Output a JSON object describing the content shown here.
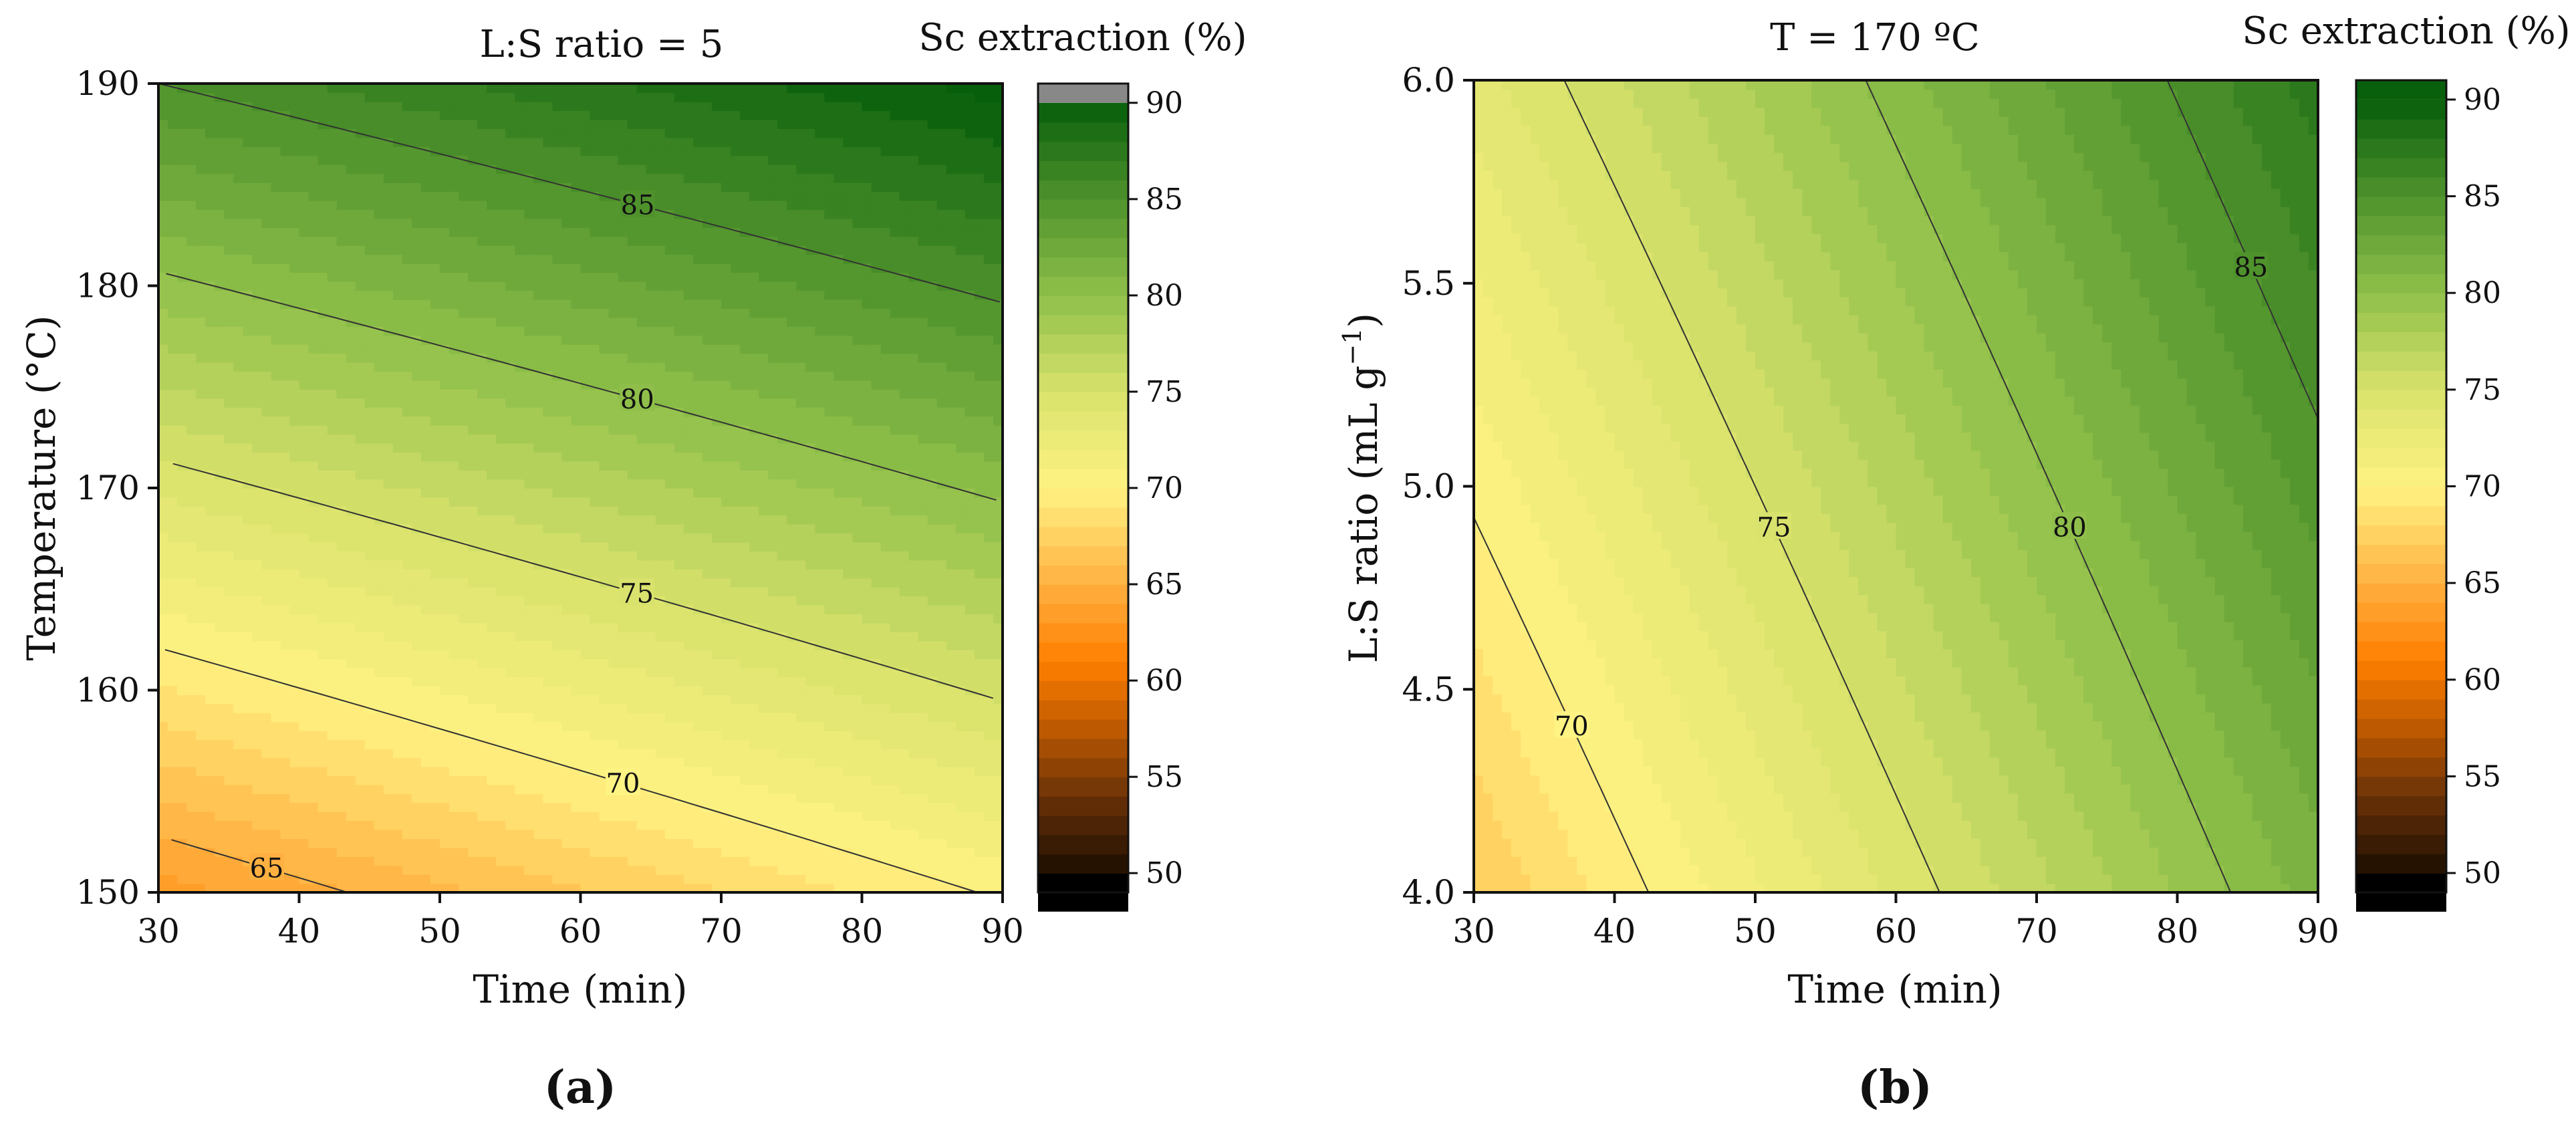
{
  "chart_data": [
    {
      "panel": "(a)",
      "type": "contour",
      "title": "L:S ratio = 5",
      "xlabel": "Time (min)",
      "ylabel": "Temperature (°C)",
      "xlim": [
        30,
        90
      ],
      "ylim": [
        150,
        190
      ],
      "xticks": [
        "30",
        "40",
        "50",
        "60",
        "70",
        "80",
        "90"
      ],
      "yticks": [
        "150",
        "160",
        "170",
        "180",
        "190"
      ],
      "colorbar_title": "Sc extraction (%)",
      "colorbar_ticks": [
        "50",
        "55",
        "60",
        "65",
        "70",
        "75",
        "80",
        "85",
        "90"
      ],
      "contour_labels": [
        "65",
        "70",
        "75",
        "80",
        "85"
      ],
      "z_corners": {
        "x30_y150": 63.5,
        "x90_y150": 70.2,
        "x30_y190": 85.0,
        "x90_y190": 90.5
      }
    },
    {
      "panel": "(b)",
      "type": "contour",
      "title": "T = 170 ºC",
      "xlabel": "Time (min)",
      "ylabel": "L:S ratio (mL g",
      "ylabel_sup": "−1",
      "ylabel_end": ")",
      "xlim": [
        30,
        90
      ],
      "ylim": [
        4.0,
        6.0
      ],
      "xticks": [
        "30",
        "40",
        "50",
        "60",
        "70",
        "80",
        "90"
      ],
      "yticks": [
        "4.0",
        "4.5",
        "5.0",
        "5.5",
        "6.0"
      ],
      "colorbar_title": "Sc extraction (%)",
      "colorbar_ticks": [
        "50",
        "55",
        "60",
        "65",
        "70",
        "75",
        "80",
        "85",
        "90"
      ],
      "contour_labels": [
        "70",
        "75",
        "80",
        "85"
      ],
      "z_corners": {
        "x30_y4": 67.0,
        "x90_y4": 81.5,
        "x30_y6": 73.5,
        "x90_y6": 87.5
      }
    }
  ],
  "colorbar": {
    "stops": [
      {
        "v": 50,
        "c": "#1c0d00"
      },
      {
        "v": 54,
        "c": "#6b3208"
      },
      {
        "v": 58,
        "c": "#c75f00"
      },
      {
        "v": 61,
        "c": "#ff7f00"
      },
      {
        "v": 65,
        "c": "#ffb040"
      },
      {
        "v": 70,
        "c": "#fff383"
      },
      {
        "v": 75,
        "c": "#d8e26c"
      },
      {
        "v": 80,
        "c": "#8fbf4a"
      },
      {
        "v": 85,
        "c": "#4f922c"
      },
      {
        "v": 90,
        "c": "#075f0b"
      }
    ],
    "below_color": "#000000",
    "above_color": "#888888"
  },
  "panel_labels": [
    "(a)",
    "(b)"
  ]
}
